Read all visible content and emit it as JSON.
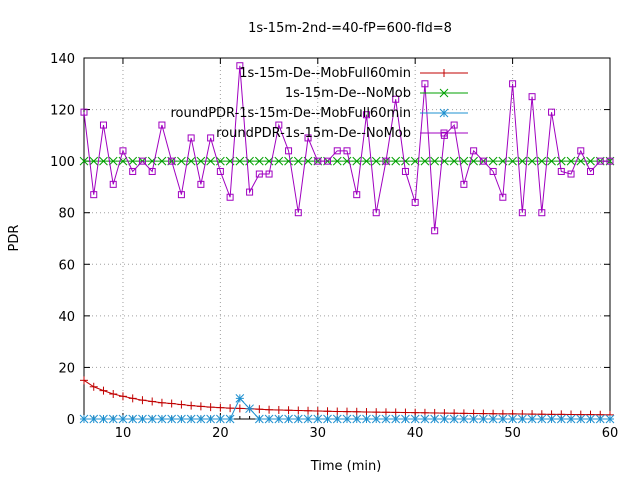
{
  "chart_data": {
    "type": "line",
    "title": "1s-15m-2nd-=40-fP=600-fId=8",
    "xlabel": "Time (min)",
    "ylabel": "PDR",
    "xlim": [
      6,
      60
    ],
    "ylim": [
      0,
      140
    ],
    "xticks": [
      10,
      20,
      30,
      40,
      50,
      60
    ],
    "yticks": [
      0,
      20,
      40,
      60,
      80,
      100,
      120,
      140
    ],
    "grid": true,
    "legend_position": "top-right",
    "x": [
      6,
      7,
      8,
      9,
      10,
      11,
      12,
      13,
      14,
      15,
      16,
      17,
      18,
      19,
      20,
      21,
      22,
      23,
      24,
      25,
      26,
      27,
      28,
      29,
      30,
      31,
      32,
      33,
      34,
      35,
      36,
      37,
      38,
      39,
      40,
      41,
      42,
      43,
      44,
      45,
      46,
      47,
      48,
      49,
      50,
      51,
      52,
      53,
      54,
      55,
      56,
      57,
      58,
      59,
      60
    ],
    "series": [
      {
        "name": "1s-15m-De--MobFull60min",
        "color": "#c00000",
        "marker": "plus",
        "values": [
          15,
          12.5,
          11,
          9.7,
          8.8,
          8,
          7.3,
          6.8,
          6.3,
          6,
          5.6,
          5.2,
          4.9,
          4.6,
          4.4,
          4.2,
          4.1,
          4,
          3.8,
          3.6,
          3.5,
          3.4,
          3.3,
          3.2,
          3.1,
          3,
          2.9,
          2.85,
          2.8,
          2.7,
          2.65,
          2.6,
          2.55,
          2.5,
          2.45,
          2.4,
          2.35,
          2.3,
          2.25,
          2.2,
          2.15,
          2.1,
          2.05,
          2,
          2,
          1.95,
          1.9,
          1.85,
          1.8,
          1.8,
          1.75,
          1.7,
          1.7,
          1.65,
          1.6
        ]
      },
      {
        "name": "1s-15m-De--NoMob",
        "color": "#00a000",
        "marker": "cross",
        "values": [
          100,
          100,
          100,
          100,
          100,
          100,
          100,
          100,
          100,
          100,
          100,
          100,
          100,
          100,
          100,
          100,
          100,
          100,
          100,
          100,
          100,
          100,
          100,
          100,
          100,
          100,
          100,
          100,
          100,
          100,
          100,
          100,
          100,
          100,
          100,
          100,
          100,
          100,
          100,
          100,
          100,
          100,
          100,
          100,
          100,
          100,
          100,
          100,
          100,
          100,
          100,
          100,
          100,
          100,
          100
        ]
      },
      {
        "name": "roundPDR-1s-15m-De--MobFull60min",
        "color": "#1e90d0",
        "marker": "star",
        "values": [
          0,
          0,
          0,
          0,
          0,
          0,
          0,
          0,
          0,
          0,
          0,
          0,
          0,
          0,
          0,
          0,
          8,
          4,
          0,
          0,
          0,
          0,
          0,
          0,
          0,
          0,
          0,
          0,
          0,
          0,
          0,
          0,
          0,
          0,
          0,
          0,
          0,
          0,
          0,
          0,
          0,
          0,
          0,
          0,
          0,
          0,
          0,
          0,
          0,
          0,
          0,
          0,
          0,
          0,
          0
        ]
      },
      {
        "name": "roundPDR-1s-15m-De--NoMob",
        "color": "#a000c0",
        "marker": "square",
        "values": [
          119,
          87,
          114,
          91,
          104,
          96,
          100,
          96,
          114,
          100,
          87,
          109,
          91,
          109,
          96,
          86,
          137,
          88,
          95,
          95,
          114,
          104,
          80,
          109,
          100,
          100,
          104,
          104,
          87,
          118,
          80,
          100,
          124,
          96,
          84,
          130,
          73,
          110,
          114,
          91,
          104,
          100,
          96,
          86,
          130,
          80,
          125,
          80,
          119,
          96,
          95,
          104,
          96,
          100,
          100
        ]
      }
    ]
  }
}
